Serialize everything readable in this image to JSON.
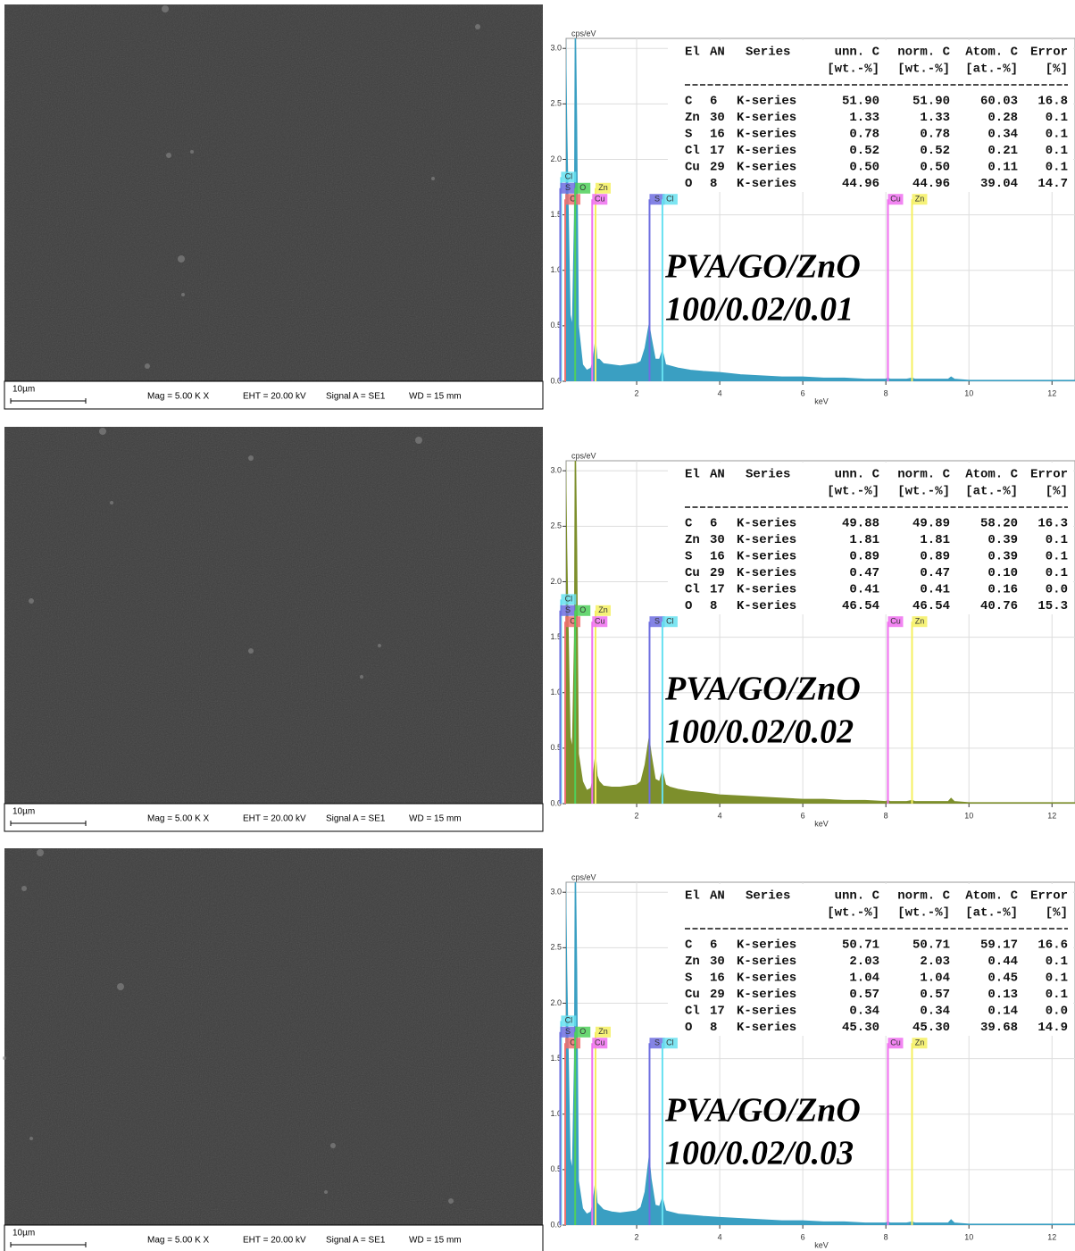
{
  "sem_images": [
    {
      "scale_bar": "10µm",
      "mag": "Mag =  5.00 K X",
      "eht": "EHT = 20.00 kV",
      "signal": "Signal A = SE1",
      "wd": "WD =  15 mm"
    },
    {
      "scale_bar": "10µm",
      "mag": "Mag =  5.00 K X",
      "eht": "EHT = 20.00 kV",
      "signal": "Signal A = SE1",
      "wd": "WD =  15 mm"
    },
    {
      "scale_bar": "10µm",
      "mag": "Mag =  5.00 K X",
      "eht": "EHT = 20.00 kV",
      "signal": "Signal A = SE1",
      "wd": "WD =  15 mm"
    }
  ],
  "chart_data": [
    {
      "type": "area",
      "x_label": "keV",
      "y_label": "cps/eV",
      "color": "#3a9fc2",
      "grid": true,
      "xlim": [
        0.15,
        12.7
      ],
      "ylim": [
        0,
        3.05
      ],
      "xticks": [
        2,
        4,
        6,
        8,
        10,
        12
      ],
      "yticks": [
        {
          "value": 0,
          "label": "0.0"
        },
        {
          "value": 0.5,
          "label": "0.5"
        },
        {
          "value": 1,
          "label": "1.0"
        },
        {
          "value": 1.5,
          "label": "1.5"
        },
        {
          "value": 2,
          "label": "2.0"
        },
        {
          "value": 2.5,
          "label": "2.5"
        },
        {
          "value": 3,
          "label": "3.0"
        }
      ],
      "x": [
        0.15,
        0.2,
        0.25,
        0.28,
        0.32,
        0.4,
        0.45,
        0.5,
        0.52,
        0.56,
        0.6,
        0.7,
        0.8,
        0.9,
        0.95,
        1.01,
        1.05,
        1.1,
        1.2,
        1.4,
        1.6,
        1.8,
        2.0,
        2.1,
        2.2,
        2.3,
        2.35,
        2.45,
        2.55,
        2.62,
        2.7,
        2.8,
        3.0,
        3.3,
        3.6,
        4.0,
        4.5,
        5.0,
        5.5,
        6.0,
        6.5,
        7.0,
        7.5,
        8.0,
        8.05,
        8.1,
        8.5,
        8.63,
        8.7,
        9.0,
        9.5,
        9.57,
        9.65,
        10.0,
        10.5,
        11.0,
        11.5,
        12.0,
        12.5,
        12.7
      ],
      "values": [
        0.3,
        1.0,
        2.4,
        3.5,
        2.3,
        0.6,
        0.5,
        1.5,
        3.5,
        2.3,
        0.5,
        0.15,
        0.1,
        0.12,
        0.2,
        0.38,
        0.2,
        0.2,
        0.16,
        0.15,
        0.14,
        0.15,
        0.16,
        0.18,
        0.3,
        0.52,
        0.4,
        0.2,
        0.2,
        0.28,
        0.15,
        0.14,
        0.12,
        0.1,
        0.09,
        0.08,
        0.06,
        0.05,
        0.04,
        0.04,
        0.03,
        0.03,
        0.02,
        0.02,
        0.03,
        0.02,
        0.02,
        0.03,
        0.02,
        0.02,
        0.02,
        0.04,
        0.02,
        0.01,
        0.01,
        0.01,
        0.01,
        0.01,
        0.01,
        0.01
      ],
      "markers": [
        {
          "label": "Cl",
          "x": 0.18,
          "height": 1.84,
          "color": "#66e0f0"
        },
        {
          "label": "S",
          "x": 0.16,
          "height": 1.74,
          "color": "#6f6fe0"
        },
        {
          "label": "C",
          "x": 0.28,
          "height": 1.64,
          "color": "#f07070"
        },
        {
          "label": "O",
          "x": 0.52,
          "height": 1.74,
          "color": "#4fd05a"
        },
        {
          "label": "Zn",
          "x": 1.01,
          "height": 1.74,
          "color": "#f5f060"
        },
        {
          "label": "Cu",
          "x": 0.93,
          "height": 1.64,
          "color": "#f070f0"
        },
        {
          "label": "S",
          "x": 2.31,
          "height": 1.64,
          "color": "#6f6fe0"
        },
        {
          "label": "Cl",
          "x": 2.62,
          "height": 1.64,
          "color": "#66e0f0"
        },
        {
          "label": "Cu",
          "x": 8.05,
          "height": 1.64,
          "color": "#f070f0"
        },
        {
          "label": "Zn",
          "x": 8.63,
          "height": 1.64,
          "color": "#f5f060"
        }
      ],
      "table": {
        "columns": [
          "El",
          "AN",
          "Series",
          "unn. C",
          "norm. C",
          "Atom. C",
          "Error"
        ],
        "units": [
          "[wt.-%]",
          "[wt.-%]",
          "[at.-%]",
          "[%]"
        ],
        "rows": [
          [
            "C",
            "6",
            "K-series",
            "51.90",
            "51.90",
            "60.03",
            "16.8"
          ],
          [
            "Zn",
            "30",
            "K-series",
            "1.33",
            "1.33",
            "0.28",
            "0.1"
          ],
          [
            "S",
            "16",
            "K-series",
            "0.78",
            "0.78",
            "0.34",
            "0.1"
          ],
          [
            "Cl",
            "17",
            "K-series",
            "0.52",
            "0.52",
            "0.21",
            "0.1"
          ],
          [
            "Cu",
            "29",
            "K-series",
            "0.50",
            "0.50",
            "0.11",
            "0.1"
          ],
          [
            "O",
            "8",
            "K-series",
            "44.96",
            "44.96",
            "39.04",
            "14.7"
          ]
        ]
      },
      "annotation": [
        "PVA/GO/ZnO",
        "100/0.02/0.01"
      ]
    },
    {
      "type": "area",
      "x_label": "keV",
      "y_label": "cps/eV",
      "color": "#7d8f2c",
      "grid": true,
      "xlim": [
        0.15,
        12.7
      ],
      "ylim": [
        0,
        3.05
      ],
      "xticks": [
        2,
        4,
        6,
        8,
        10,
        12
      ],
      "yticks": [
        {
          "value": 0,
          "label": "0.0"
        },
        {
          "value": 0.5,
          "label": "0.5"
        },
        {
          "value": 1,
          "label": "1.0"
        },
        {
          "value": 1.5,
          "label": "1.5"
        },
        {
          "value": 2,
          "label": "2.0"
        },
        {
          "value": 2.5,
          "label": "2.5"
        },
        {
          "value": 3,
          "label": "3.0"
        }
      ],
      "x": [
        0.15,
        0.2,
        0.25,
        0.28,
        0.32,
        0.4,
        0.45,
        0.5,
        0.52,
        0.56,
        0.6,
        0.7,
        0.8,
        0.9,
        0.95,
        1.01,
        1.05,
        1.1,
        1.2,
        1.4,
        1.6,
        1.8,
        2.0,
        2.1,
        2.2,
        2.3,
        2.35,
        2.45,
        2.55,
        2.62,
        2.7,
        2.8,
        3.0,
        3.3,
        3.6,
        4.0,
        4.5,
        5.0,
        5.5,
        6.0,
        6.5,
        7.0,
        7.5,
        8.0,
        8.05,
        8.1,
        8.5,
        8.63,
        8.7,
        9.0,
        9.5,
        9.57,
        9.65,
        10.0,
        10.5,
        11.0,
        11.5,
        12.0,
        12.5,
        12.7
      ],
      "values": [
        0.3,
        1.0,
        2.4,
        3.5,
        2.3,
        0.6,
        0.5,
        1.5,
        3.5,
        2.3,
        0.45,
        0.2,
        0.12,
        0.14,
        0.25,
        0.45,
        0.25,
        0.2,
        0.16,
        0.15,
        0.15,
        0.16,
        0.17,
        0.2,
        0.35,
        0.6,
        0.45,
        0.22,
        0.2,
        0.3,
        0.17,
        0.15,
        0.13,
        0.11,
        0.1,
        0.08,
        0.07,
        0.06,
        0.05,
        0.04,
        0.04,
        0.03,
        0.03,
        0.02,
        0.03,
        0.02,
        0.02,
        0.03,
        0.02,
        0.02,
        0.02,
        0.05,
        0.02,
        0.01,
        0.01,
        0.01,
        0.01,
        0.01,
        0.01,
        0.01
      ],
      "markers": [
        {
          "label": "Cl",
          "x": 0.18,
          "height": 1.84,
          "color": "#66e0f0"
        },
        {
          "label": "S",
          "x": 0.16,
          "height": 1.74,
          "color": "#6f6fe0"
        },
        {
          "label": "C",
          "x": 0.28,
          "height": 1.64,
          "color": "#f07070"
        },
        {
          "label": "O",
          "x": 0.52,
          "height": 1.74,
          "color": "#4fd05a"
        },
        {
          "label": "Zn",
          "x": 1.01,
          "height": 1.74,
          "color": "#f5f060"
        },
        {
          "label": "Cu",
          "x": 0.93,
          "height": 1.64,
          "color": "#f070f0"
        },
        {
          "label": "S",
          "x": 2.31,
          "height": 1.64,
          "color": "#6f6fe0"
        },
        {
          "label": "Cl",
          "x": 2.62,
          "height": 1.64,
          "color": "#66e0f0"
        },
        {
          "label": "Cu",
          "x": 8.05,
          "height": 1.64,
          "color": "#f070f0"
        },
        {
          "label": "Zn",
          "x": 8.63,
          "height": 1.64,
          "color": "#f5f060"
        }
      ],
      "table": {
        "columns": [
          "El",
          "AN",
          "Series",
          "unn. C",
          "norm. C",
          "Atom. C",
          "Error"
        ],
        "units": [
          "[wt.-%]",
          "[wt.-%]",
          "[at.-%]",
          "[%]"
        ],
        "rows": [
          [
            "C",
            "6",
            "K-series",
            "49.88",
            "49.89",
            "58.20",
            "16.3"
          ],
          [
            "Zn",
            "30",
            "K-series",
            "1.81",
            "1.81",
            "0.39",
            "0.1"
          ],
          [
            "S",
            "16",
            "K-series",
            "0.89",
            "0.89",
            "0.39",
            "0.1"
          ],
          [
            "Cu",
            "29",
            "K-series",
            "0.47",
            "0.47",
            "0.10",
            "0.1"
          ],
          [
            "Cl",
            "17",
            "K-series",
            "0.41",
            "0.41",
            "0.16",
            "0.0"
          ],
          [
            "O",
            "8",
            "K-series",
            "46.54",
            "46.54",
            "40.76",
            "15.3"
          ]
        ]
      },
      "annotation": [
        "PVA/GO/ZnO",
        "100/0.02/0.02"
      ]
    },
    {
      "type": "area",
      "x_label": "keV",
      "y_label": "cps/eV",
      "color": "#3a9fc2",
      "grid": true,
      "xlim": [
        0.15,
        12.7
      ],
      "ylim": [
        0,
        3.05
      ],
      "xticks": [
        2,
        4,
        6,
        8,
        10,
        12
      ],
      "yticks": [
        {
          "value": 0,
          "label": "0.0"
        },
        {
          "value": 0.5,
          "label": "0.5"
        },
        {
          "value": 1,
          "label": "1.0"
        },
        {
          "value": 1.5,
          "label": "1.5"
        },
        {
          "value": 2,
          "label": "2.0"
        },
        {
          "value": 2.5,
          "label": "2.5"
        },
        {
          "value": 3,
          "label": "3.0"
        }
      ],
      "x": [
        0.15,
        0.2,
        0.25,
        0.28,
        0.32,
        0.4,
        0.45,
        0.5,
        0.52,
        0.56,
        0.6,
        0.7,
        0.8,
        0.9,
        0.95,
        1.01,
        1.05,
        1.1,
        1.2,
        1.4,
        1.6,
        1.8,
        2.0,
        2.1,
        2.2,
        2.3,
        2.35,
        2.45,
        2.55,
        2.62,
        2.7,
        2.8,
        3.0,
        3.3,
        3.6,
        4.0,
        4.5,
        5.0,
        5.5,
        6.0,
        6.5,
        7.0,
        7.5,
        8.0,
        8.05,
        8.1,
        8.5,
        8.63,
        8.7,
        9.0,
        9.5,
        9.57,
        9.65,
        10.0,
        10.5,
        11.0,
        11.5,
        12.0,
        12.5,
        12.7
      ],
      "values": [
        0.3,
        1.0,
        2.4,
        3.5,
        2.3,
        0.6,
        0.5,
        1.5,
        3.5,
        2.3,
        0.4,
        0.15,
        0.1,
        0.12,
        0.22,
        0.4,
        0.2,
        0.18,
        0.14,
        0.12,
        0.11,
        0.12,
        0.13,
        0.16,
        0.3,
        0.62,
        0.42,
        0.18,
        0.17,
        0.25,
        0.13,
        0.12,
        0.1,
        0.09,
        0.08,
        0.07,
        0.06,
        0.05,
        0.04,
        0.04,
        0.03,
        0.03,
        0.02,
        0.02,
        0.03,
        0.02,
        0.02,
        0.03,
        0.02,
        0.02,
        0.02,
        0.05,
        0.02,
        0.01,
        0.01,
        0.01,
        0.01,
        0.01,
        0.01,
        0.01
      ],
      "markers": [
        {
          "label": "Cl",
          "x": 0.18,
          "height": 1.84,
          "color": "#66e0f0"
        },
        {
          "label": "S",
          "x": 0.16,
          "height": 1.74,
          "color": "#6f6fe0"
        },
        {
          "label": "C",
          "x": 0.28,
          "height": 1.64,
          "color": "#f07070"
        },
        {
          "label": "O",
          "x": 0.52,
          "height": 1.74,
          "color": "#4fd05a"
        },
        {
          "label": "Zn",
          "x": 1.01,
          "height": 1.74,
          "color": "#f5f060"
        },
        {
          "label": "Cu",
          "x": 0.93,
          "height": 1.64,
          "color": "#f070f0"
        },
        {
          "label": "S",
          "x": 2.31,
          "height": 1.64,
          "color": "#6f6fe0"
        },
        {
          "label": "Cl",
          "x": 2.62,
          "height": 1.64,
          "color": "#66e0f0"
        },
        {
          "label": "Cu",
          "x": 8.05,
          "height": 1.64,
          "color": "#f070f0"
        },
        {
          "label": "Zn",
          "x": 8.63,
          "height": 1.64,
          "color": "#f5f060"
        }
      ],
      "table": {
        "columns": [
          "El",
          "AN",
          "Series",
          "unn. C",
          "norm. C",
          "Atom. C",
          "Error"
        ],
        "units": [
          "[wt.-%]",
          "[wt.-%]",
          "[at.-%]",
          "[%]"
        ],
        "rows": [
          [
            "C",
            "6",
            "K-series",
            "50.71",
            "50.71",
            "59.17",
            "16.6"
          ],
          [
            "Zn",
            "30",
            "K-series",
            "2.03",
            "2.03",
            "0.44",
            "0.1"
          ],
          [
            "S",
            "16",
            "K-series",
            "1.04",
            "1.04",
            "0.45",
            "0.1"
          ],
          [
            "Cu",
            "29",
            "K-series",
            "0.57",
            "0.57",
            "0.13",
            "0.1"
          ],
          [
            "Cl",
            "17",
            "K-series",
            "0.34",
            "0.34",
            "0.14",
            "0.0"
          ],
          [
            "O",
            "8",
            "K-series",
            "45.30",
            "45.30",
            "39.68",
            "14.9"
          ]
        ]
      },
      "annotation": [
        "PVA/GO/ZnO",
        "100/0.02/0.03"
      ]
    }
  ]
}
